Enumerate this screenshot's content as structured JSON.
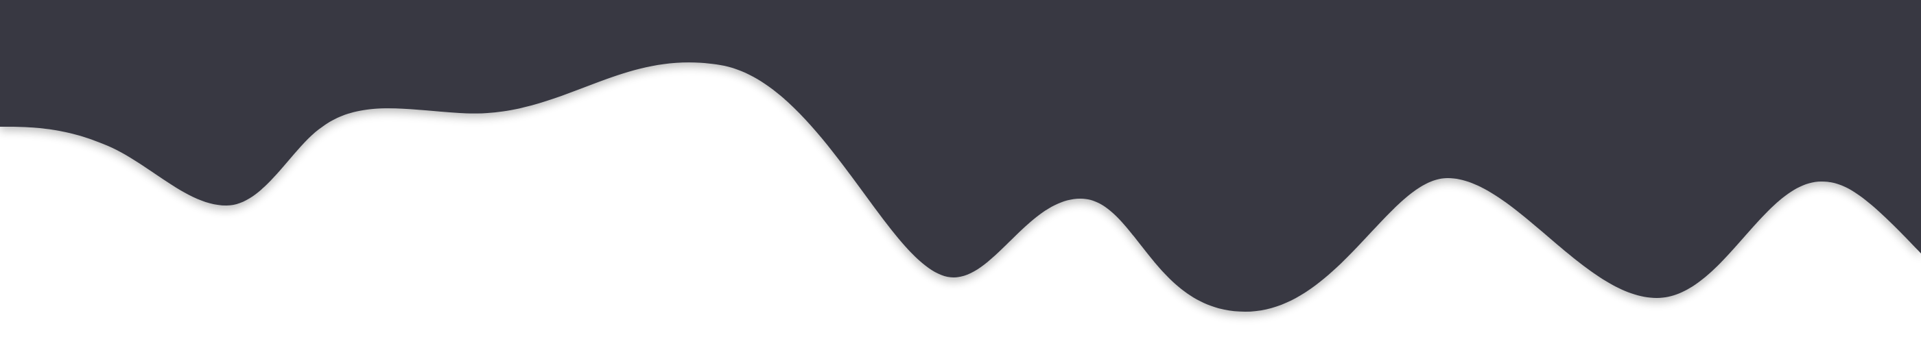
{
  "graphic": {
    "kind": "dripping-wave-divider",
    "colors": {
      "background": "#ffffff",
      "wave_fill": "#373943",
      "shadow": "#000000"
    },
    "shadow_opacity": 0.28
  }
}
